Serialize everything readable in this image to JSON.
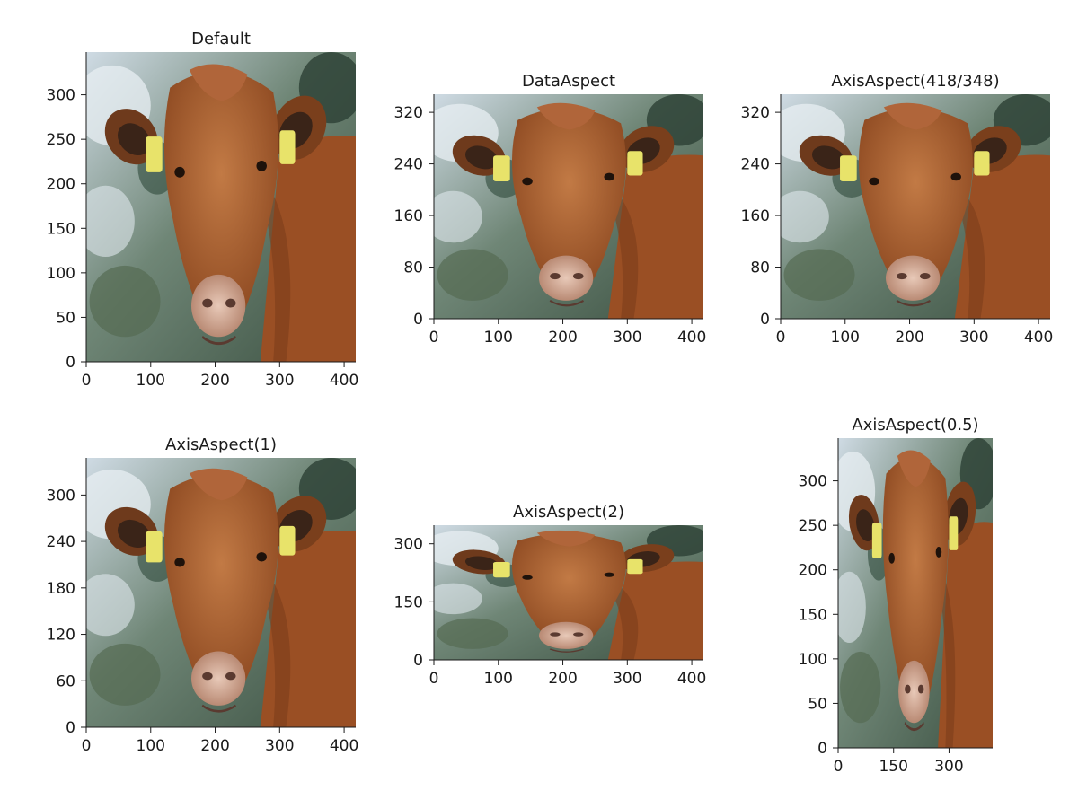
{
  "chart_data": [
    {
      "type": "image",
      "title": "Default",
      "x_ticks": [
        0,
        100,
        200,
        300,
        400
      ],
      "y_ticks": [
        0,
        50,
        100,
        150,
        200,
        250,
        300
      ],
      "xlim": [
        0,
        418
      ],
      "ylim": [
        0,
        348
      ]
    },
    {
      "type": "image",
      "title": "DataAspect",
      "x_ticks": [
        0,
        100,
        200,
        300,
        400
      ],
      "y_ticks": [
        0,
        80,
        160,
        240,
        320
      ],
      "xlim": [
        0,
        418
      ],
      "ylim": [
        0,
        348
      ]
    },
    {
      "type": "image",
      "title": "AxisAspect(418/348)",
      "x_ticks": [
        0,
        100,
        200,
        300,
        400
      ],
      "y_ticks": [
        0,
        80,
        160,
        240,
        320
      ],
      "xlim": [
        0,
        418
      ],
      "ylim": [
        0,
        348
      ]
    },
    {
      "type": "image",
      "title": "AxisAspect(1)",
      "x_ticks": [
        0,
        100,
        200,
        300,
        400
      ],
      "y_ticks": [
        0,
        60,
        120,
        180,
        240,
        300
      ],
      "xlim": [
        0,
        418
      ],
      "ylim": [
        0,
        348
      ]
    },
    {
      "type": "image",
      "title": "AxisAspect(2)",
      "x_ticks": [
        0,
        100,
        200,
        300,
        400
      ],
      "y_ticks": [
        0,
        150,
        300
      ],
      "xlim": [
        0,
        418
      ],
      "ylim": [
        0,
        348
      ]
    },
    {
      "type": "image",
      "title": "AxisAspect(0.5)",
      "x_ticks": [
        0,
        150,
        300
      ],
      "y_ticks": [
        0,
        50,
        100,
        150,
        200,
        250,
        300
      ],
      "xlim": [
        0,
        418
      ],
      "ylim": [
        0,
        348
      ]
    }
  ]
}
